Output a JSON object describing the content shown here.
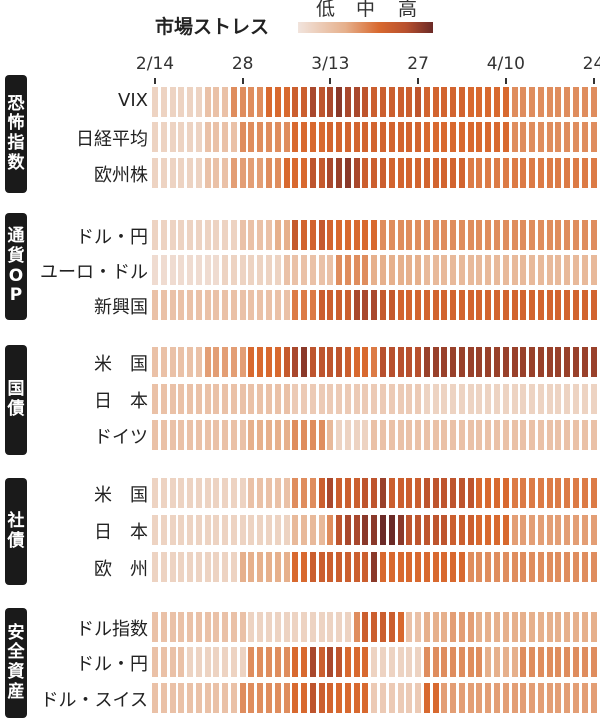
{
  "chart_data": {
    "type": "heatmap",
    "title": "市場ストレス",
    "legend": {
      "labels": [
        "低",
        "中",
        "高"
      ],
      "placement": "top"
    },
    "scale": {
      "min": 0,
      "max": 10
    },
    "x_ticks": [
      {
        "label": "2/14",
        "index": 0
      },
      {
        "label": "28",
        "index": 10
      },
      {
        "label": "3/13",
        "index": 20
      },
      {
        "label": "27",
        "index": 30
      },
      {
        "label": "4/10",
        "index": 40
      },
      {
        "label": "24",
        "index": 50
      }
    ],
    "groups": [
      {
        "label": "恐怖指数",
        "rows": [
          {
            "label": "VIX",
            "values": [
              1,
              1,
              1,
              1,
              1,
              1,
              2,
              2,
              2,
              4,
              4,
              4,
              4,
              5,
              5,
              5,
              6,
              6,
              8,
              7,
              8,
              9,
              8,
              8,
              7,
              6,
              6,
              6,
              6,
              6,
              7,
              5.5,
              5.5,
              5.5,
              5.5,
              5.5,
              5,
              5,
              5,
              5,
              5,
              4,
              4,
              4,
              4,
              4,
              4,
              4,
              4,
              4,
              4
            ]
          },
          {
            "label": "日経平均",
            "values": [
              1,
              1,
              1,
              1,
              1,
              1,
              2,
              2,
              2,
              2,
              4,
              4,
              4,
              4,
              4,
              4,
              5,
              5,
              5,
              5,
              5.5,
              5.5,
              5.5,
              5.5,
              5.5,
              5.5,
              5.5,
              5.5,
              5.5,
              5.5,
              5.5,
              5,
              5,
              5,
              5,
              5,
              5,
              5,
              5,
              5,
              5,
              4,
              4,
              4,
              4,
              4,
              4,
              4,
              4,
              4,
              4
            ]
          },
          {
            "label": "欧州株",
            "values": [
              1,
              1,
              1,
              1,
              1,
              1,
              2,
              2,
              2,
              3.5,
              3.5,
              3.5,
              3.5,
              4,
              4,
              5,
              5,
              5,
              7,
              6.5,
              8,
              8.5,
              9,
              8,
              6,
              6,
              6,
              5.5,
              5.5,
              5.5,
              5.5,
              5.5,
              5.5,
              5.5,
              5.5,
              5.5,
              4.5,
              4.5,
              4.5,
              4.5,
              4.5,
              4.5,
              4.5,
              4.5,
              4.5,
              4.5,
              4.5,
              4.5,
              4.5,
              4.5,
              4.5
            ]
          }
        ]
      },
      {
        "label": "通貨OP",
        "rows": [
          {
            "label": "ドル・円",
            "values": [
              1,
              1,
              1,
              1,
              1,
              1,
              1,
              1,
              1,
              1,
              2,
              2,
              2,
              2,
              3,
              3,
              6.5,
              5.5,
              5.5,
              6.5,
              5.5,
              5,
              5,
              5,
              5,
              5,
              4,
              4,
              4,
              4,
              4,
              4,
              4,
              4,
              4,
              4,
              4,
              4,
              4,
              4,
              4,
              4,
              4,
              4,
              4,
              4,
              4,
              4,
              4,
              4,
              4
            ]
          },
          {
            "label": "ユーロ・ドル",
            "values": [
              0.5,
              0.5,
              0.5,
              0.5,
              0.5,
              0.5,
              0.5,
              0.5,
              1,
              1,
              1,
              1,
              1,
              1,
              1,
              2,
              2,
              2,
              2,
              2,
              2,
              4,
              4,
              4,
              4,
              3,
              3,
              3,
              3,
              3,
              3,
              2.5,
              2.5,
              2.5,
              2.5,
              2.5,
              2.5,
              2.5,
              2.5,
              2.5,
              2.5,
              2.5,
              2.5,
              2.5,
              2.5,
              2.5,
              2.5,
              2.5,
              2.5,
              2.5,
              2.5
            ]
          },
          {
            "label": "新興国",
            "values": [
              2,
              2,
              2,
              2,
              2,
              2,
              2,
              2,
              2,
              2,
              2,
              2,
              2,
              2,
              2,
              2,
              4.5,
              4.5,
              4.5,
              6,
              6,
              6,
              6,
              8,
              8,
              8,
              6.5,
              6.5,
              5.5,
              5.5,
              5.5,
              5.5,
              5.5,
              5.5,
              5.5,
              5.5,
              5.5,
              5.5,
              5.5,
              5.5,
              5.5,
              5.5,
              5.5,
              5.5,
              5.5,
              5.5,
              5.5,
              5.5,
              5.5,
              5.5,
              5.5
            ]
          }
        ]
      },
      {
        "label": "国債",
        "rows": [
          {
            "label": "米　国",
            "values": [
              2,
              2,
              2,
              2,
              2,
              2,
              3.5,
              3.5,
              3.5,
              3.5,
              3.5,
              5,
              5,
              5,
              5,
              6.5,
              8,
              9,
              7,
              7,
              7,
              7,
              6,
              5,
              5,
              4.5,
              7.5,
              7.5,
              7.5,
              7.5,
              7.5,
              8.5,
              8.5,
              8.5,
              8.5,
              8.5,
              8.5,
              8.5,
              8.5,
              8.5,
              8.5,
              8.5,
              8.5,
              8.5,
              8.5,
              8.5,
              8.5,
              8.5,
              8.5,
              8.5,
              8.5
            ]
          },
          {
            "label": "日　本",
            "values": [
              2,
              2,
              2,
              2,
              2,
              2,
              2,
              2,
              2,
              2,
              2,
              2,
              2,
              2,
              2,
              2,
              1.5,
              1.5,
              1.5,
              1.5,
              1.5,
              1.5,
              1.5,
              1.5,
              1.5,
              1.5,
              1.5,
              1.5,
              1.5,
              1.5,
              1.5,
              1,
              1,
              1,
              1,
              1,
              1,
              1,
              1,
              1,
              1,
              1,
              1,
              1,
              1,
              1,
              1,
              1,
              1,
              1,
              1
            ]
          },
          {
            "label": "ドイツ",
            "values": [
              2,
              2,
              2,
              2,
              2,
              2,
              2,
              2,
              2,
              2,
              2,
              3,
              3,
              3,
              3,
              3,
              4,
              4,
              4,
              4,
              2.5,
              1,
              1,
              1,
              1,
              2,
              2,
              2,
              2,
              2,
              2,
              2,
              2,
              2,
              2,
              2,
              2,
              2,
              2,
              2,
              2,
              2,
              2,
              2,
              2,
              2,
              2,
              2,
              2,
              2,
              2
            ]
          }
        ]
      },
      {
        "label": "社債",
        "rows": [
          {
            "label": "米　国",
            "values": [
              1,
              1,
              1,
              1,
              1,
              1,
              1,
              1,
              1,
              1,
              1,
              2,
              2,
              2,
              2,
              2,
              4,
              4,
              4,
              6,
              8,
              6,
              6,
              6,
              7,
              7,
              8.5,
              6,
              6,
              6,
              6,
              7,
              7,
              7,
              7,
              7,
              7,
              5,
              5,
              5,
              5,
              4.5,
              4.5,
              4.5,
              4.5,
              4.5,
              4.5,
              4.5,
              4.5,
              4.5,
              4.5
            ]
          },
          {
            "label": "日　本",
            "values": [
              1,
              1,
              1,
              1,
              1,
              1,
              1,
              1,
              1,
              1,
              1,
              1,
              1,
              1,
              1,
              1,
              2.5,
              2.5,
              2.5,
              2.5,
              4,
              7,
              8,
              8,
              9,
              9,
              10,
              10,
              9,
              7,
              7,
              7,
              7,
              7,
              6,
              6,
              6,
              5,
              5,
              5,
              5,
              3.5,
              3.5,
              3.5,
              3.5,
              3.5,
              3.5,
              3.5,
              3.5,
              3.5,
              3.5
            ]
          },
          {
            "label": "欧　州",
            "values": [
              1,
              1,
              1,
              1,
              1,
              1,
              1,
              1,
              1,
              1,
              3,
              3,
              3,
              3,
              3,
              3,
              5,
              5,
              6,
              6,
              6,
              6,
              6,
              6,
              6,
              9,
              5,
              5,
              5,
              5,
              5,
              5,
              5,
              5,
              5,
              5,
              4,
              4,
              4,
              4,
              4,
              4,
              4,
              4,
              4,
              4,
              4,
              4,
              4,
              4,
              4
            ]
          }
        ]
      },
      {
        "label": "安全資産",
        "rows": [
          {
            "label": "ドル指数",
            "values": [
              2,
              2,
              2,
              2,
              2,
              2,
              2,
              2,
              2,
              2,
              2,
              1,
              1,
              1,
              1,
              1,
              1,
              1,
              1,
              1,
              1,
              1,
              1,
              4,
              6,
              6,
              6,
              6,
              5,
              2,
              2,
              3,
              3,
              3,
              3.5,
              3.5,
              3.5,
              3,
              3,
              3,
              3,
              3,
              3,
              3,
              3,
              3,
              3,
              3,
              3,
              3,
              3
            ]
          },
          {
            "label": "ドル・円",
            "values": [
              2,
              2,
              2,
              2,
              1,
              1,
              1,
              1,
              1,
              1,
              1,
              4,
              4,
              4,
              4,
              4,
              5,
              5,
              8,
              6,
              8,
              7,
              5,
              5,
              5,
              1,
              1,
              1,
              1,
              1,
              1,
              4,
              4,
              4,
              4,
              4,
              4,
              4,
              3,
              3,
              3,
              3,
              4,
              4,
              4,
              4,
              4,
              4,
              4,
              4,
              4
            ]
          },
          {
            "label": "ドル・スイス",
            "values": [
              2,
              2,
              2,
              2,
              2,
              2,
              2,
              2,
              2,
              2,
              4,
              4,
              4,
              4,
              4,
              4,
              5,
              5,
              7,
              6,
              5.5,
              5,
              5,
              5,
              5,
              1.5,
              1.5,
              1.5,
              1.5,
              1.5,
              1.5,
              5,
              5,
              3.5,
              3.5,
              3.5,
              3.5,
              3.5,
              3.5,
              3.5,
              3.5,
              3.5,
              3.5,
              3.5,
              3.5,
              3.5,
              3.5,
              3.5,
              3.5,
              3.5,
              3.5
            ]
          }
        ]
      }
    ]
  },
  "colors": {
    "low": "#f1e4dd",
    "mid": "#d8692f",
    "high": "#6b2a27"
  }
}
